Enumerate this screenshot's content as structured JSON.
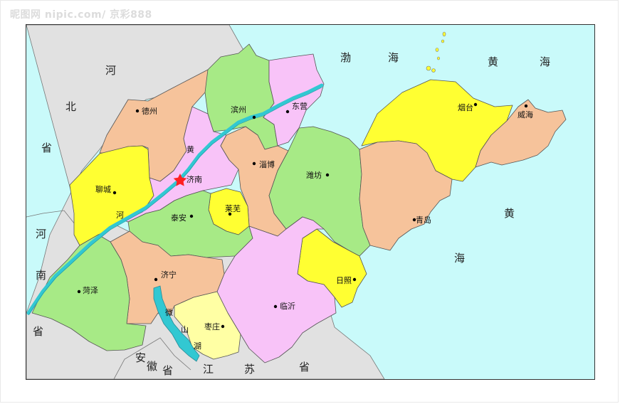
{
  "watermark": "昵图网 nipic.com/ 京彩888",
  "colors": {
    "sea": "#c9fafa",
    "land_outside": "#e1e1e1",
    "green": "#a7ea86",
    "pink": "#f8c3f8",
    "orange": "#f6c39b",
    "yellow": "#ffff32",
    "light_yellow": "#ffffa4",
    "river": "#32c8d2",
    "capital_star": "#ff2020"
  },
  "neighbors": {
    "hebei_1": "河",
    "hebei_2": "北",
    "hebei_3": "省",
    "henan_1": "河",
    "henan_2": "南",
    "henan_3": "省",
    "anhui_1": "安",
    "anhui_2": "徽",
    "anhui_3": "省",
    "jiangsu_1": "江",
    "jiangsu_2": "苏",
    "jiangsu_3": "省"
  },
  "seas": {
    "bohai_1": "渤",
    "bohai_2": "海",
    "huanghai_n1": "黄",
    "huanghai_n2": "海",
    "huanghai_s1": "黄",
    "huanghai_s2": "海"
  },
  "river": {
    "name_1": "黄",
    "name_2": "河"
  },
  "lake": {
    "name_1": "微",
    "name_2": "山",
    "name_3": "湖"
  },
  "cities": {
    "dezhou": "德州",
    "binzhou": "滨州",
    "dongying": "东营",
    "yantai": "烟台",
    "weihai": "威海",
    "liaocheng": "聊城",
    "jinan": "济南",
    "zibo": "淄博",
    "weifang": "潍坊",
    "qingdao": "青岛",
    "taian": "泰安",
    "laiwu": "莱芜",
    "jining": "济宁",
    "heze": "菏泽",
    "rizhao": "日照",
    "linyi": "临沂",
    "zaozhuang": "枣庄"
  }
}
